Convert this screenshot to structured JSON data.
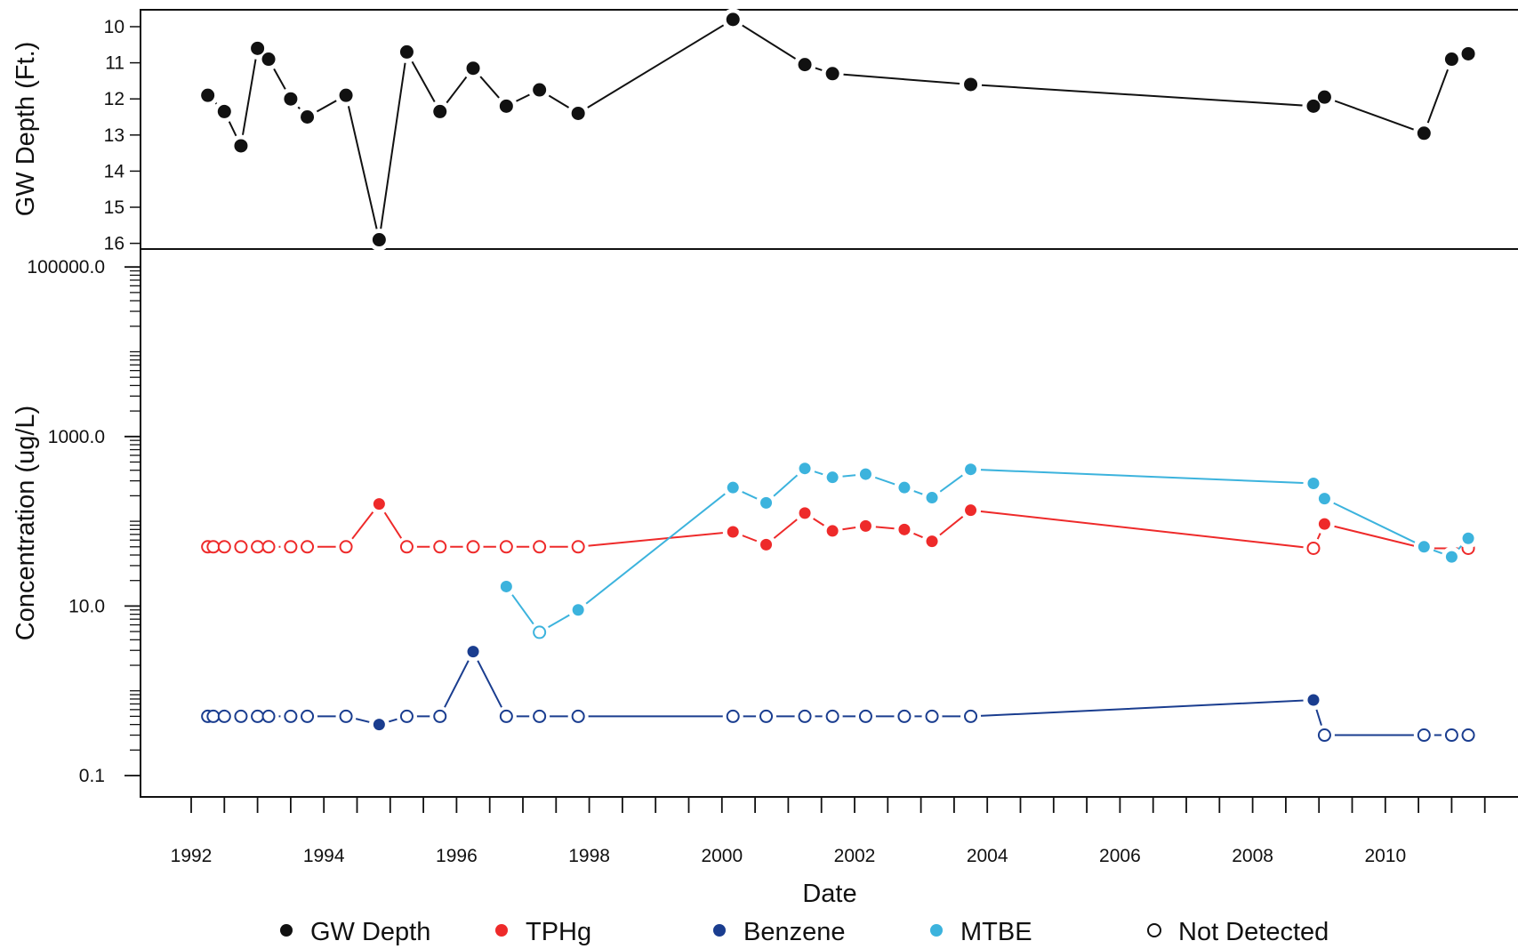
{
  "chart_data": [
    {
      "type": "line",
      "ylabel": "GW Depth (Ft.)",
      "y_reversed": true,
      "ylim": [
        16,
        10
      ],
      "yticks": [
        "10",
        "11",
        "12",
        "13",
        "14",
        "15",
        "16"
      ],
      "series": [
        {
          "name": "GW Depth",
          "color": "#111111",
          "points": [
            {
              "date": "1992-04",
              "y": 11.9
            },
            {
              "date": "1992-07",
              "y": 12.35
            },
            {
              "date": "1992-10",
              "y": 13.3
            },
            {
              "date": "1993-01",
              "y": 10.6
            },
            {
              "date": "1993-03",
              "y": 10.9
            },
            {
              "date": "1993-07",
              "y": 12.0
            },
            {
              "date": "1993-10",
              "y": 12.5
            },
            {
              "date": "1994-05",
              "y": 11.9
            },
            {
              "date": "1994-11",
              "y": 15.9
            },
            {
              "date": "1995-04",
              "y": 10.7
            },
            {
              "date": "1995-10",
              "y": 12.35
            },
            {
              "date": "1996-04",
              "y": 11.15
            },
            {
              "date": "1996-10",
              "y": 12.2
            },
            {
              "date": "1997-04",
              "y": 11.75
            },
            {
              "date": "1997-11",
              "y": 12.4
            },
            {
              "date": "2000-03",
              "y": 9.8
            },
            {
              "date": "2001-04",
              "y": 11.05
            },
            {
              "date": "2001-09",
              "y": 11.3
            },
            {
              "date": "2003-10",
              "y": 11.6
            },
            {
              "date": "2008-12",
              "y": 12.2
            },
            {
              "date": "2009-02",
              "y": 11.95
            },
            {
              "date": "2010-08",
              "y": 12.95
            },
            {
              "date": "2011-01",
              "y": 10.9
            },
            {
              "date": "2011-04",
              "y": 10.75
            }
          ]
        }
      ]
    },
    {
      "type": "line",
      "ylabel": "Concentration (ug/L)",
      "xlabel": "Date",
      "y_scale": "log",
      "ylim": [
        0.1,
        100000
      ],
      "yticks": [
        "0.1",
        "10.0",
        "1000.0",
        "100000.0"
      ],
      "xticks": [
        "1992",
        "1994",
        "1996",
        "1998",
        "2000",
        "2002",
        "2004",
        "2006",
        "2008",
        "2010"
      ],
      "series": [
        {
          "name": "TPHg",
          "color": "#ee2a2a",
          "points": [
            {
              "date": "1992-04",
              "y": 50,
              "detected": false
            },
            {
              "date": "1992-05",
              "y": 50,
              "detected": false
            },
            {
              "date": "1992-07",
              "y": 50,
              "detected": false
            },
            {
              "date": "1992-10",
              "y": 50,
              "detected": false
            },
            {
              "date": "1993-01",
              "y": 50,
              "detected": false
            },
            {
              "date": "1993-03",
              "y": 50,
              "detected": false
            },
            {
              "date": "1993-07",
              "y": 50,
              "detected": false
            },
            {
              "date": "1993-10",
              "y": 50,
              "detected": false
            },
            {
              "date": "1994-05",
              "y": 50,
              "detected": false
            },
            {
              "date": "1994-11",
              "y": 160,
              "detected": true
            },
            {
              "date": "1995-04",
              "y": 50,
              "detected": false
            },
            {
              "date": "1995-10",
              "y": 50,
              "detected": false
            },
            {
              "date": "1996-04",
              "y": 50,
              "detected": false
            },
            {
              "date": "1996-10",
              "y": 50,
              "detected": false
            },
            {
              "date": "1997-04",
              "y": 50,
              "detected": false
            },
            {
              "date": "1997-11",
              "y": 50,
              "detected": false
            },
            {
              "date": "2000-03",
              "y": 75,
              "detected": true
            },
            {
              "date": "2000-09",
              "y": 53,
              "detected": true
            },
            {
              "date": "2001-04",
              "y": 125,
              "detected": true
            },
            {
              "date": "2001-09",
              "y": 77,
              "detected": true
            },
            {
              "date": "2002-03",
              "y": 88,
              "detected": true
            },
            {
              "date": "2002-10",
              "y": 80,
              "detected": true
            },
            {
              "date": "2003-03",
              "y": 58,
              "detected": true
            },
            {
              "date": "2003-10",
              "y": 135,
              "detected": true
            },
            {
              "date": "2008-12",
              "y": 48,
              "detected": false
            },
            {
              "date": "2009-02",
              "y": 93,
              "detected": true
            },
            {
              "date": "2010-08",
              "y": 48,
              "detected": false
            },
            {
              "date": "2011-04",
              "y": 48,
              "detected": false
            }
          ]
        },
        {
          "name": "Benzene",
          "color": "#1a3d8f",
          "points": [
            {
              "date": "1992-04",
              "y": 0.5,
              "detected": false
            },
            {
              "date": "1992-05",
              "y": 0.5,
              "detected": false
            },
            {
              "date": "1992-07",
              "y": 0.5,
              "detected": false
            },
            {
              "date": "1992-10",
              "y": 0.5,
              "detected": false
            },
            {
              "date": "1993-01",
              "y": 0.5,
              "detected": false
            },
            {
              "date": "1993-03",
              "y": 0.5,
              "detected": false
            },
            {
              "date": "1993-07",
              "y": 0.5,
              "detected": false
            },
            {
              "date": "1993-10",
              "y": 0.5,
              "detected": false
            },
            {
              "date": "1994-05",
              "y": 0.5,
              "detected": false
            },
            {
              "date": "1994-11",
              "y": 0.4,
              "detected": true
            },
            {
              "date": "1995-04",
              "y": 0.5,
              "detected": false
            },
            {
              "date": "1995-10",
              "y": 0.5,
              "detected": false
            },
            {
              "date": "1996-04",
              "y": 2.9,
              "detected": true
            },
            {
              "date": "1996-10",
              "y": 0.5,
              "detected": false
            },
            {
              "date": "1997-04",
              "y": 0.5,
              "detected": false
            },
            {
              "date": "1997-11",
              "y": 0.5,
              "detected": false
            },
            {
              "date": "2000-03",
              "y": 0.5,
              "detected": false
            },
            {
              "date": "2000-09",
              "y": 0.5,
              "detected": false
            },
            {
              "date": "2001-04",
              "y": 0.5,
              "detected": false
            },
            {
              "date": "2001-09",
              "y": 0.5,
              "detected": false
            },
            {
              "date": "2002-03",
              "y": 0.5,
              "detected": false
            },
            {
              "date": "2002-10",
              "y": 0.5,
              "detected": false
            },
            {
              "date": "2003-03",
              "y": 0.5,
              "detected": false
            },
            {
              "date": "2003-10",
              "y": 0.5,
              "detected": false
            },
            {
              "date": "2008-12",
              "y": 0.78,
              "detected": true
            },
            {
              "date": "2009-02",
              "y": 0.3,
              "detected": false
            },
            {
              "date": "2010-08",
              "y": 0.3,
              "detected": false
            },
            {
              "date": "2011-01",
              "y": 0.3,
              "detected": false
            },
            {
              "date": "2011-04",
              "y": 0.3,
              "detected": false
            }
          ]
        },
        {
          "name": "MTBE",
          "color": "#3cb3dd",
          "points": [
            {
              "date": "1996-10",
              "y": 17,
              "detected": true
            },
            {
              "date": "1997-04",
              "y": 4.9,
              "detected": false
            },
            {
              "date": "1997-11",
              "y": 9,
              "detected": true
            },
            {
              "date": "2000-03",
              "y": 250,
              "detected": true
            },
            {
              "date": "2000-09",
              "y": 165,
              "detected": true
            },
            {
              "date": "2001-04",
              "y": 420,
              "detected": true
            },
            {
              "date": "2001-09",
              "y": 330,
              "detected": true
            },
            {
              "date": "2002-03",
              "y": 360,
              "detected": true
            },
            {
              "date": "2002-10",
              "y": 250,
              "detected": true
            },
            {
              "date": "2003-03",
              "y": 190,
              "detected": true
            },
            {
              "date": "2003-10",
              "y": 410,
              "detected": true
            },
            {
              "date": "2008-12",
              "y": 280,
              "detected": true
            },
            {
              "date": "2009-02",
              "y": 185,
              "detected": true
            },
            {
              "date": "2010-08",
              "y": 50,
              "detected": true
            },
            {
              "date": "2011-01",
              "y": 38,
              "detected": true
            },
            {
              "date": "2011-04",
              "y": 63,
              "detected": true
            }
          ]
        }
      ]
    }
  ],
  "legend": {
    "position": "bottom",
    "items": [
      {
        "label": "GW Depth",
        "color": "#111111",
        "filled": true
      },
      {
        "label": "TPHg",
        "color": "#ee2a2a",
        "filled": true
      },
      {
        "label": "Benzene",
        "color": "#1a3d8f",
        "filled": true
      },
      {
        "label": "MTBE",
        "color": "#3cb3dd",
        "filled": true
      },
      {
        "label": "Not Detected",
        "color": "#111111",
        "filled": false
      }
    ]
  }
}
